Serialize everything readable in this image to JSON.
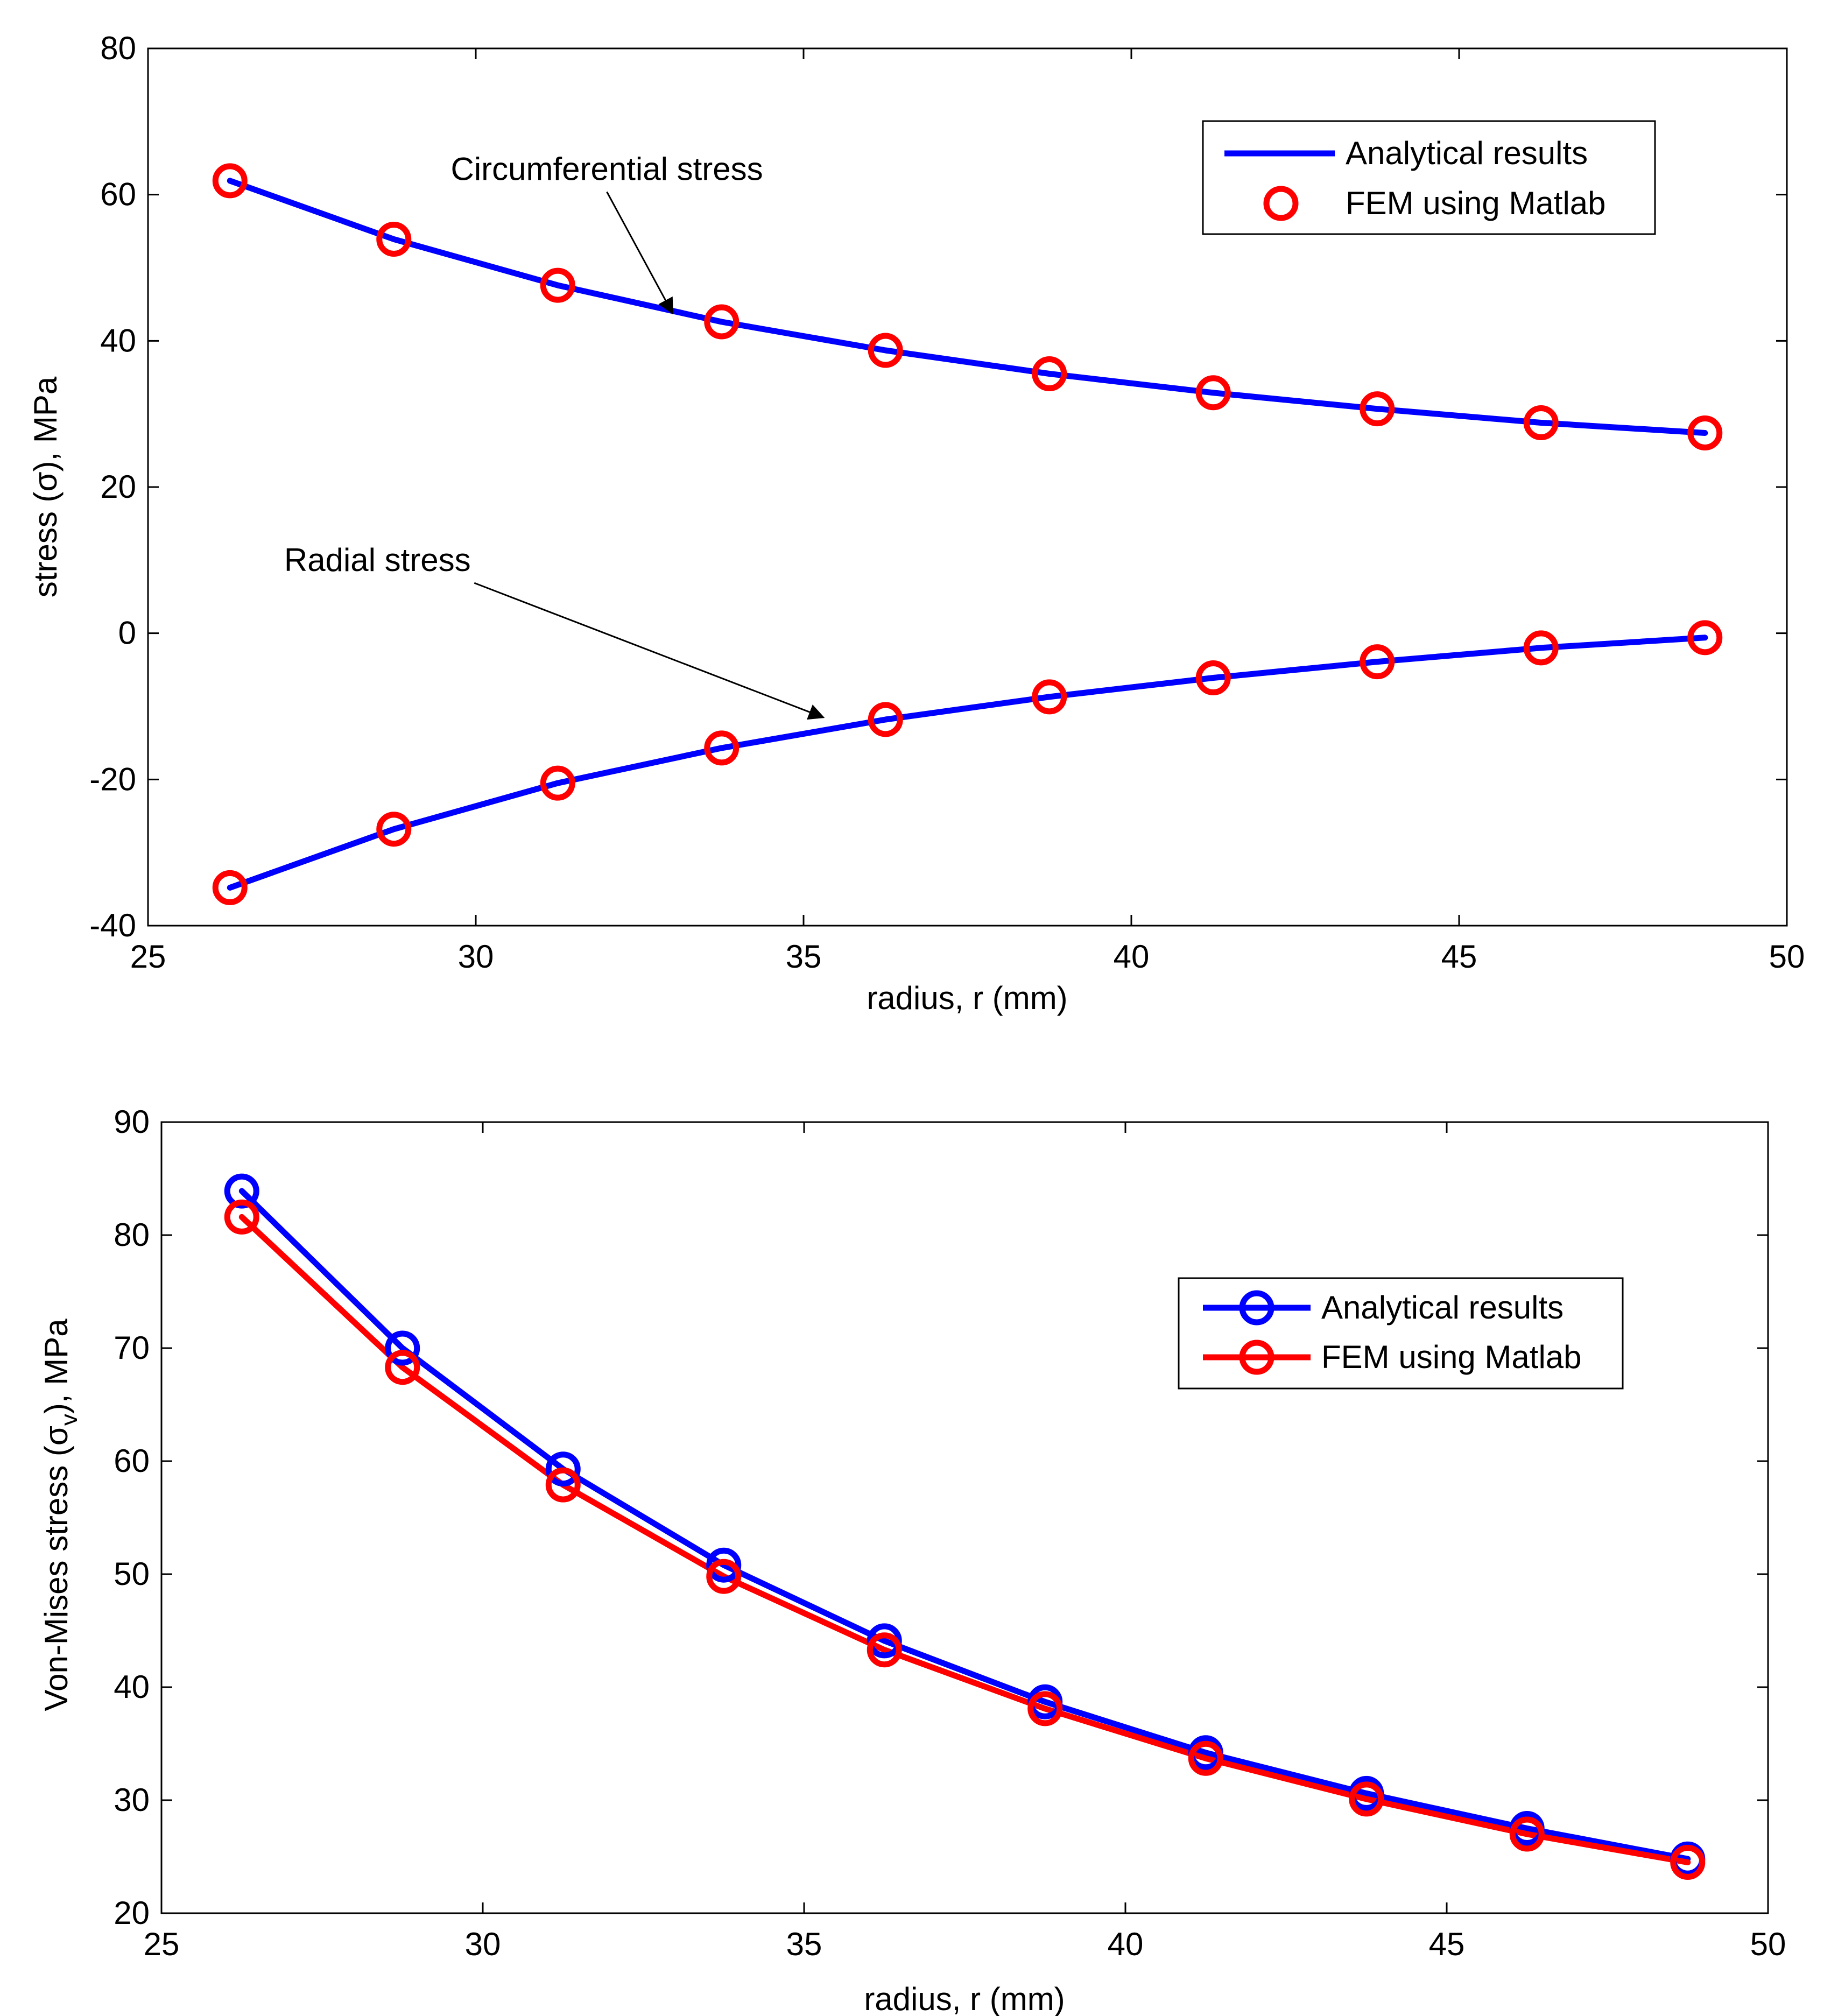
{
  "chart_data": [
    {
      "type": "line",
      "title": "",
      "xlabel": "radius, r (mm)",
      "ylabel": "stress (σ), MPa",
      "xlim": [
        25,
        50
      ],
      "ylim": [
        -40,
        80
      ],
      "xticks": [
        25,
        30,
        35,
        40,
        45,
        50
      ],
      "yticks": [
        -40,
        -20,
        0,
        20,
        40,
        60,
        80
      ],
      "grid": false,
      "legend_position": "top-right",
      "legend": [
        {
          "label": "Analytical results",
          "style": "line",
          "color": "#0000ff"
        },
        {
          "label": "FEM using Matlab",
          "style": "marker",
          "color": "#ff0000"
        }
      ],
      "x": [
        26.25,
        28.75,
        31.25,
        33.75,
        36.25,
        38.75,
        41.25,
        43.75,
        46.25,
        48.75
      ],
      "series": [
        {
          "name": "Circumferential stress (Analytical results)",
          "kind": "line",
          "color": "#0000ff",
          "values": [
            61.9,
            53.9,
            47.6,
            42.6,
            38.7,
            35.5,
            32.9,
            30.7,
            28.8,
            27.4
          ]
        },
        {
          "name": "Circumferential stress (FEM using Matlab)",
          "kind": "marker",
          "color": "#ff0000",
          "values": [
            61.9,
            53.9,
            47.6,
            42.6,
            38.7,
            35.5,
            32.9,
            30.7,
            28.8,
            27.4
          ]
        },
        {
          "name": "Radial stress (Analytical results)",
          "kind": "line",
          "color": "#0000ff",
          "values": [
            -34.8,
            -26.8,
            -20.5,
            -15.7,
            -11.8,
            -8.7,
            -6.1,
            -3.9,
            -2.0,
            -0.6
          ]
        },
        {
          "name": "Radial stress (FEM using Matlab)",
          "kind": "marker",
          "color": "#ff0000",
          "values": [
            -34.8,
            -26.8,
            -20.5,
            -15.7,
            -11.8,
            -8.7,
            -6.1,
            -3.9,
            -2.0,
            -0.6
          ]
        }
      ],
      "annotations": [
        {
          "text": "Circumferential stress",
          "text_at": [
            32.0,
            62.0
          ],
          "arrow_to": [
            33.0,
            43.8
          ]
        },
        {
          "text": "Radial stress",
          "text_at": [
            28.5,
            8.5
          ],
          "arrow_to": [
            35.3,
            -11.5
          ]
        }
      ]
    },
    {
      "type": "line",
      "title": "",
      "xlabel": "radius, r (mm)",
      "ylabel": "Von-Mises stress (σv), MPa",
      "ylabel_parts": {
        "prefix": "Von-Mises stress (",
        "symbol": "σ",
        "subscript": "v",
        "suffix": "), MPa"
      },
      "xlim": [
        25,
        50
      ],
      "ylim": [
        20,
        90
      ],
      "xticks": [
        25,
        30,
        35,
        40,
        45,
        50
      ],
      "yticks": [
        20,
        30,
        40,
        50,
        60,
        70,
        80,
        90
      ],
      "grid": false,
      "legend_position": "top-right",
      "legend": [
        {
          "label": "Analytical results",
          "style": "line-marker",
          "color": "#0000ff"
        },
        {
          "label": "FEM using Matlab",
          "style": "line-marker",
          "color": "#ff0000"
        }
      ],
      "x": [
        26.25,
        28.75,
        31.25,
        33.75,
        36.25,
        38.75,
        41.25,
        43.75,
        46.25,
        48.75
      ],
      "series": [
        {
          "name": "Analytical results",
          "kind": "line-marker",
          "color": "#0000ff",
          "values": [
            83.9,
            70.0,
            59.3,
            50.8,
            44.1,
            38.7,
            34.2,
            30.6,
            27.5,
            24.8
          ]
        },
        {
          "name": "FEM using Matlab",
          "kind": "line-marker",
          "color": "#ff0000",
          "values": [
            81.6,
            68.3,
            57.9,
            49.8,
            43.3,
            38.1,
            33.7,
            30.1,
            27.0,
            24.5
          ]
        }
      ]
    }
  ]
}
